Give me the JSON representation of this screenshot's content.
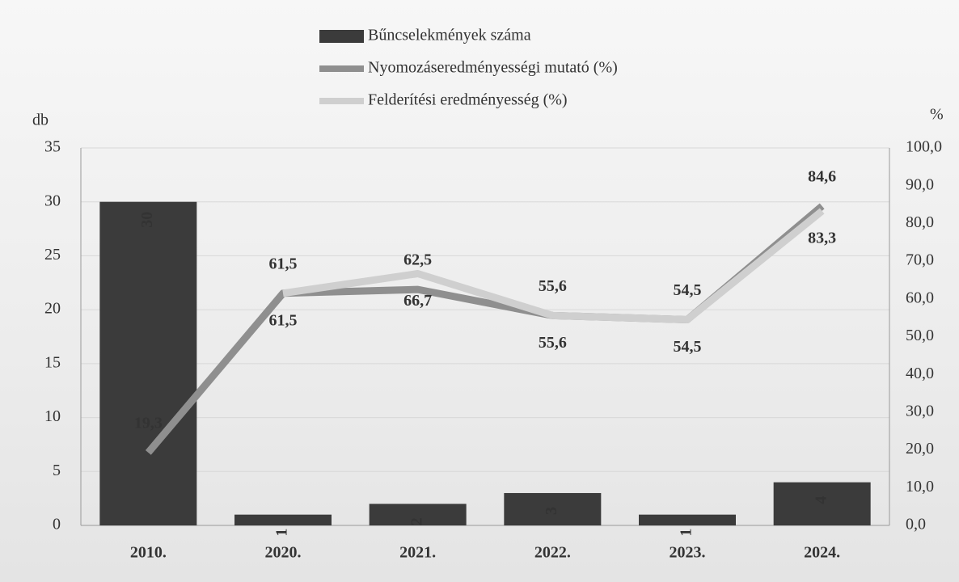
{
  "chart_data": {
    "type": "bar",
    "categories": [
      "2010.",
      "2020.",
      "2021.",
      "2022.",
      "2023.",
      "2024."
    ],
    "y_label": "db",
    "y2_label": "%",
    "ylim": [
      0,
      35
    ],
    "yticks": [
      0,
      5,
      10,
      15,
      20,
      25,
      30,
      35
    ],
    "y2lim": [
      0,
      100
    ],
    "y2ticks": [
      {
        "value": 0,
        "label": "0,0"
      },
      {
        "value": 10,
        "label": "10,0"
      },
      {
        "value": 20,
        "label": "20,0"
      },
      {
        "value": 30,
        "label": "30,0"
      },
      {
        "value": 40,
        "label": "40,0"
      },
      {
        "value": 50,
        "label": "50,0"
      },
      {
        "value": 60,
        "label": "60,0"
      },
      {
        "value": 70,
        "label": "70,0"
      },
      {
        "value": 80,
        "label": "80,0"
      },
      {
        "value": 90,
        "label": "90,0"
      },
      {
        "value": 100,
        "label": "100,0"
      }
    ],
    "grid": true,
    "series": [
      {
        "name": "Bűncselekmények száma",
        "type": "bar",
        "color": "#3b3b3b",
        "values": [
          30,
          1,
          2,
          3,
          1,
          4
        ]
      },
      {
        "name": "Nyomozáseredményességi mutató (%)",
        "type": "line",
        "axis": "y2",
        "color": "#8f8f8f",
        "values": [
          19.3,
          61.5,
          62.5,
          55.6,
          54.5,
          84.6
        ],
        "value_labels": [
          "19,3",
          "61,5",
          "62,5",
          "55,6",
          "54,5",
          "84,6"
        ]
      },
      {
        "name": "Felderítési eredményesség (%)",
        "type": "line",
        "axis": "y2",
        "color": "#cfcfcf",
        "values": [
          null,
          61.5,
          66.7,
          55.6,
          54.5,
          83.3
        ],
        "value_labels": [
          null,
          "61,5",
          "66,7",
          "55,6",
          "54,5",
          "83,3"
        ]
      }
    ]
  }
}
